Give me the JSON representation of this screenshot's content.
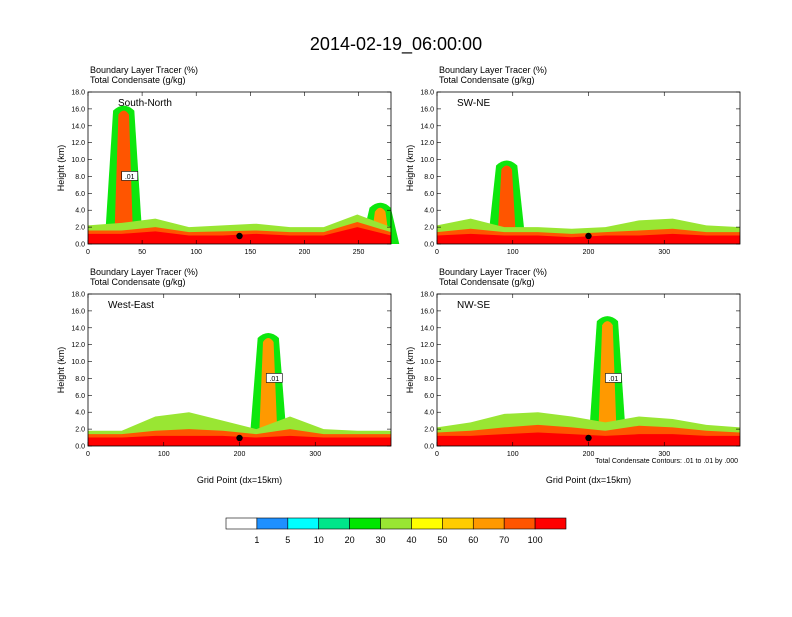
{
  "title": "2014-02-19_06:00:00",
  "colorbar": {
    "levels": [
      "1",
      "5",
      "10",
      "20",
      "30",
      "40",
      "50",
      "60",
      "70",
      "100"
    ],
    "colors": [
      "#ffffff",
      "#1e90ff",
      "#00ffff",
      "#00e68a",
      "#00e600",
      "#99e633",
      "#ffff00",
      "#ffcc00",
      "#ff9900",
      "#ff5500",
      "#ff0000"
    ]
  },
  "footnote": "Total Condensate Contours: .01 to .01 by .000",
  "chart_data": [
    {
      "type": "heatmap",
      "panel_label": "South-North",
      "header1": "Boundary Layer Tracer   (%)",
      "header2": "Total Condensate   (g/kg)",
      "ylabel": "Height (km)",
      "xlabel": "",
      "ylim": [
        0,
        18
      ],
      "xlim": [
        0,
        280
      ],
      "xticks": [
        "0",
        "50",
        "100",
        "150",
        "200",
        "250"
      ],
      "yticks": [
        "0.0",
        "2.0",
        "4.0",
        "6.0",
        "8.0",
        "10.0",
        "12.0",
        "14.0",
        "16.0",
        "18.0"
      ],
      "marker_x": 140,
      "contour_label": ".01",
      "tracer_layers": [
        {
          "level": "100",
          "top_km": [
            1.2,
            1.2,
            1.5,
            1.0,
            1.0,
            1.2,
            1.0,
            1.0,
            2.0,
            1.0
          ]
        },
        {
          "level": "70",
          "top_km": [
            1.6,
            1.6,
            2.0,
            1.4,
            1.5,
            1.6,
            1.4,
            1.4,
            2.6,
            1.4
          ]
        },
        {
          "level": "30",
          "top_km": [
            2.2,
            2.5,
            3.0,
            2.0,
            2.2,
            2.4,
            2.0,
            2.0,
            3.5,
            2.0
          ]
        }
      ],
      "plumes": [
        {
          "x": 33,
          "top_km": 16.5,
          "level": "70"
        },
        {
          "x": 270,
          "top_km": 5.0,
          "level": "60"
        }
      ]
    },
    {
      "type": "heatmap",
      "panel_label": "SW-NE",
      "header1": "Boundary Layer Tracer   (%)",
      "header2": "Total Condensate   (g/kg)",
      "ylabel": "Height (km)",
      "xlabel": "",
      "ylim": [
        0,
        18
      ],
      "xlim": [
        0,
        400
      ],
      "xticks": [
        "0",
        "100",
        "200",
        "300"
      ],
      "yticks": [
        "0.0",
        "2.0",
        "4.0",
        "6.0",
        "8.0",
        "10.0",
        "12.0",
        "14.0",
        "16.0",
        "18.0"
      ],
      "marker_x": 200,
      "contour_label": "",
      "tracer_layers": [
        {
          "level": "100",
          "top_km": [
            1.0,
            1.2,
            1.0,
            1.0,
            0.8,
            1.0,
            1.0,
            1.2,
            1.0,
            1.0
          ]
        },
        {
          "level": "70",
          "top_km": [
            1.4,
            1.8,
            1.4,
            1.4,
            1.2,
            1.4,
            1.6,
            1.8,
            1.4,
            1.4
          ]
        },
        {
          "level": "30",
          "top_km": [
            2.2,
            3.0,
            2.0,
            2.0,
            1.8,
            2.0,
            2.8,
            3.0,
            2.2,
            2.0
          ]
        }
      ],
      "plumes": [
        {
          "x": 92,
          "top_km": 10.0,
          "level": "70"
        }
      ]
    },
    {
      "type": "heatmap",
      "panel_label": "West-East",
      "header1": "Boundary Layer Tracer   (%)",
      "header2": "Total Condensate   (g/kg)",
      "ylabel": "Height (km)",
      "xlabel": "Grid Point (dx=15km)",
      "ylim": [
        0,
        18
      ],
      "xlim": [
        0,
        400
      ],
      "xticks": [
        "0",
        "100",
        "200",
        "300"
      ],
      "yticks": [
        "0.0",
        "2.0",
        "4.0",
        "6.0",
        "8.0",
        "10.0",
        "12.0",
        "14.0",
        "16.0",
        "18.0"
      ],
      "marker_x": 200,
      "contour_label": ".01",
      "tracer_layers": [
        {
          "level": "100",
          "top_km": [
            1.0,
            1.0,
            1.2,
            1.2,
            1.2,
            1.0,
            1.2,
            1.0,
            1.0,
            1.0
          ]
        },
        {
          "level": "70",
          "top_km": [
            1.4,
            1.4,
            1.8,
            2.0,
            1.8,
            1.4,
            2.0,
            1.4,
            1.4,
            1.4
          ]
        },
        {
          "level": "30",
          "top_km": [
            1.8,
            1.8,
            3.5,
            4.0,
            3.0,
            2.0,
            3.5,
            2.0,
            1.8,
            1.8
          ]
        }
      ],
      "plumes": [
        {
          "x": 238,
          "top_km": 13.5,
          "level": "60"
        }
      ]
    },
    {
      "type": "heatmap",
      "panel_label": "NW-SE",
      "header1": "Boundary Layer Tracer   (%)",
      "header2": "Total Condensate   (g/kg)",
      "ylabel": "Height (km)",
      "xlabel": "Grid Point (dx=15km)",
      "ylim": [
        0,
        18
      ],
      "xlim": [
        0,
        400
      ],
      "xticks": [
        "0",
        "100",
        "200",
        "300"
      ],
      "yticks": [
        "0.0",
        "2.0",
        "4.0",
        "6.0",
        "8.0",
        "10.0",
        "12.0",
        "14.0",
        "16.0",
        "18.0"
      ],
      "marker_x": 200,
      "contour_label": ".01",
      "tracer_layers": [
        {
          "level": "100",
          "top_km": [
            1.2,
            1.2,
            1.4,
            1.6,
            1.4,
            1.2,
            1.4,
            1.4,
            1.2,
            1.2
          ]
        },
        {
          "level": "70",
          "top_km": [
            1.6,
            1.8,
            2.2,
            2.5,
            2.2,
            1.8,
            2.4,
            2.2,
            1.8,
            1.6
          ]
        },
        {
          "level": "30",
          "top_km": [
            2.2,
            2.8,
            3.8,
            4.0,
            3.5,
            2.8,
            3.5,
            3.2,
            2.5,
            2.2
          ]
        }
      ],
      "plumes": [
        {
          "x": 225,
          "top_km": 15.5,
          "level": "60"
        }
      ]
    }
  ]
}
